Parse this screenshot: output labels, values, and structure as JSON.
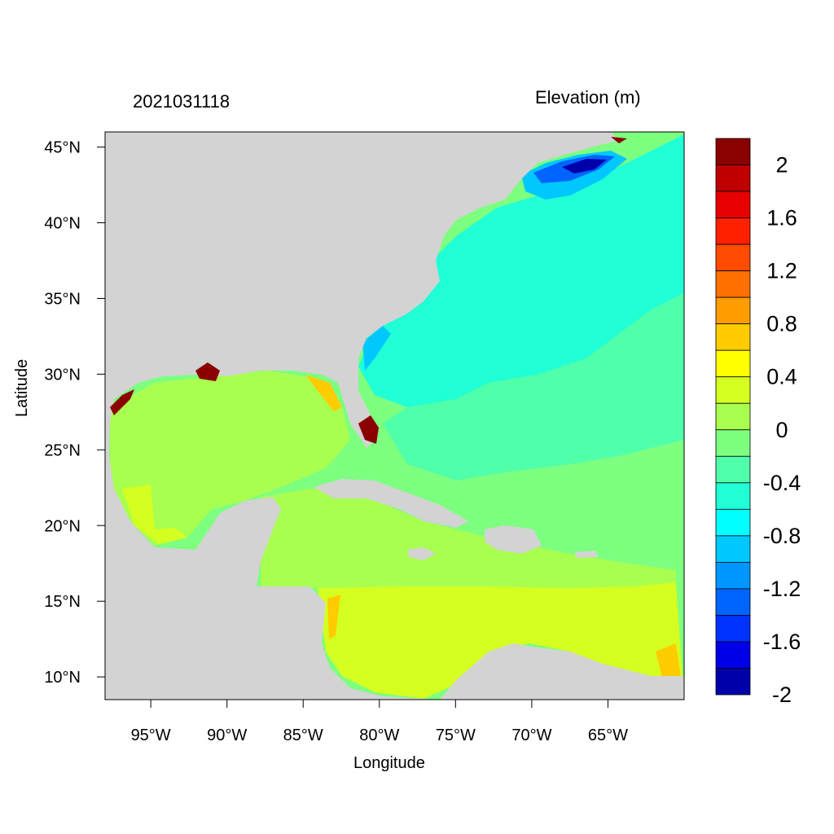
{
  "map": {
    "title_left": "2021031118",
    "title_right": "Elevation (m)",
    "x_axis_label": "Longitude",
    "y_axis_label": "Latitude",
    "lon_range": [
      -98,
      -60
    ],
    "lat_range": [
      8.5,
      46
    ],
    "lon_ticks": [
      {
        "value": -95,
        "label": "95°W"
      },
      {
        "value": -90,
        "label": "90°W"
      },
      {
        "value": -85,
        "label": "85°W"
      },
      {
        "value": -80,
        "label": "80°W"
      },
      {
        "value": -75,
        "label": "75°W"
      },
      {
        "value": -70,
        "label": "70°W"
      },
      {
        "value": -65,
        "label": "65°W"
      }
    ],
    "lat_ticks": [
      {
        "value": 45,
        "label": "45°N"
      },
      {
        "value": 40,
        "label": "40°N"
      },
      {
        "value": 35,
        "label": "35°N"
      },
      {
        "value": 30,
        "label": "30°N"
      },
      {
        "value": 25,
        "label": "25°N"
      },
      {
        "value": 20,
        "label": "20°N"
      },
      {
        "value": 15,
        "label": "15°N"
      },
      {
        "value": 10,
        "label": "10°N"
      }
    ],
    "land_color": "#d3d3d3"
  },
  "colorbar": {
    "colors": [
      "#8b0000",
      "#c00000",
      "#e80000",
      "#ff2000",
      "#ff4c00",
      "#ff7000",
      "#ff9c00",
      "#ffcc00",
      "#ffff00",
      "#d4ff20",
      "#a8ff50",
      "#7dff80",
      "#50ffaa",
      "#20ffd6",
      "#00ffff",
      "#00c8ff",
      "#0096ff",
      "#0064ff",
      "#0032ff",
      "#0000e6",
      "#0000aa"
    ],
    "labels": [
      "2",
      "1.6",
      "1.2",
      "0.8",
      "0.4",
      "0",
      "-0.4",
      "-0.8",
      "-1.2",
      "-1.6",
      "-2"
    ]
  }
}
